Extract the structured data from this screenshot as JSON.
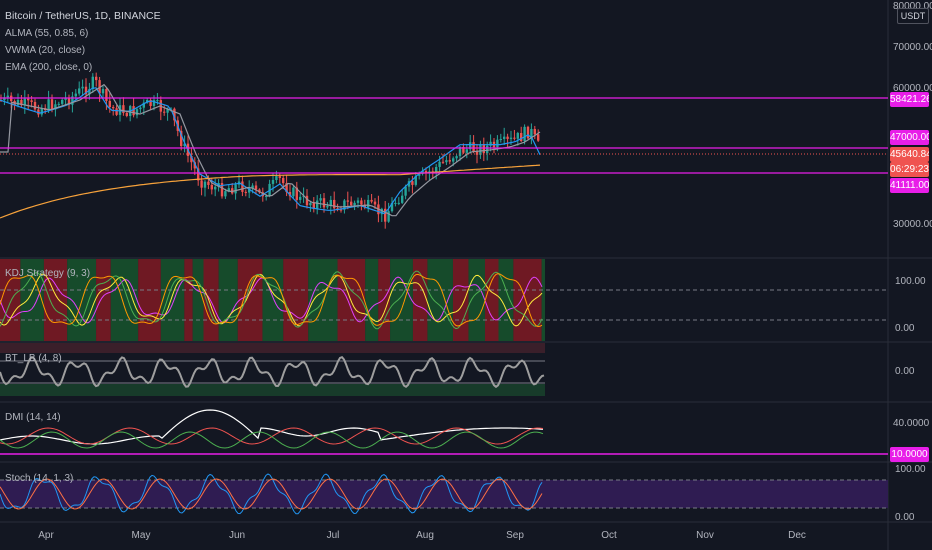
{
  "header": {
    "symbol_title": "Bitcoin / TetherUS, 1D, BINANCE",
    "currency": "USDT"
  },
  "indicators": {
    "main": [
      "ALMA (55, 0.85, 6)",
      "VWMA (20, close)",
      "EMA (200, close, 0)"
    ],
    "kdj": "KDJ Strategy (9, 3)",
    "bt_lb": "BT_LB (4, 8)",
    "dmi": "DMI (14, 14)",
    "stoch": "Stoch (14, 1, 3)"
  },
  "price_axis": {
    "ticks": [
      "80000.00",
      "70000.00",
      "60000.00",
      "30000.00"
    ],
    "top_label": "80000.00"
  },
  "price_tags": {
    "resistance_top": "58421.26",
    "resistance_mid": "47000.00",
    "current_price": "45640.84",
    "countdown": "06:29:23",
    "support": "41111.00"
  },
  "kdj_axis": [
    "100.00",
    "0.00"
  ],
  "bt_axis": [
    "0.00"
  ],
  "dmi_axis": [
    "40.0000",
    "10.0000"
  ],
  "stoch_axis": [
    "100.00",
    "0.00"
  ],
  "time_axis": [
    "Apr",
    "May",
    "Jun",
    "Jul",
    "Aug",
    "Sep",
    "Oct",
    "Nov",
    "Dec"
  ],
  "colors": {
    "background": "#131722",
    "up": "#26a69a",
    "down": "#ef5350",
    "horizontal_lines": "#e81ee8",
    "ema": "#f7a23b",
    "alma": "#9598a1",
    "vwma": "#2196f3",
    "kdj_bg_red": "#7a1a24",
    "kdj_bg_green": "#17512c",
    "stoch_bg": "#2f1c52"
  }
}
